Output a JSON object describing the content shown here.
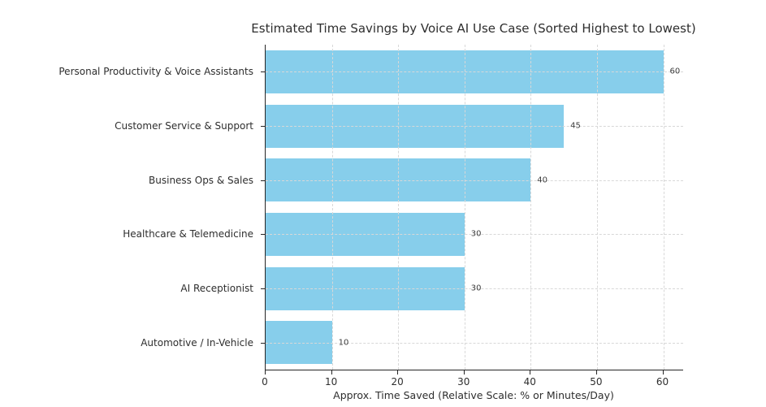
{
  "chart_data": {
    "type": "bar",
    "orientation": "horizontal",
    "title": "Estimated Time Savings by Voice AI Use Case (Sorted Highest to Lowest)",
    "categories": [
      "Personal Productivity & Voice Assistants",
      "Customer Service & Support",
      "Business Ops & Sales",
      "Healthcare & Telemedicine",
      "AI Receptionist",
      "Automotive / In-Vehicle"
    ],
    "values": [
      60,
      45,
      40,
      30,
      30,
      10
    ],
    "bar_value_labels": [
      "60",
      "45",
      "40",
      "30",
      "30",
      "10"
    ],
    "xlabel": "Approx. Time Saved (Relative Scale: % or Minutes/Day)",
    "xtick_labels": [
      "0",
      "10",
      "20",
      "30",
      "40",
      "50",
      "60"
    ],
    "xtick_values": [
      0,
      10,
      20,
      30,
      40,
      50,
      60
    ],
    "xlim": [
      0,
      63
    ],
    "grid": "dashed, both axes, drawn above bars",
    "legend_position": "none",
    "colors": {
      "bar": "#87CEEB",
      "grid": "#d8d8d8",
      "axis": "#262626",
      "text": "#2e2e2e",
      "value_label": "#3d3d3d",
      "background": "#ffffff"
    }
  }
}
